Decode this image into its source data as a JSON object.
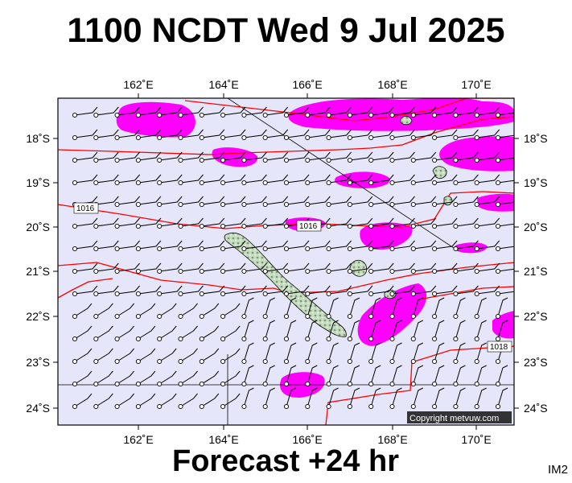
{
  "header": {
    "title": "1100 NCDT Wed 9 Jul 2025"
  },
  "footer": {
    "forecast": "Forecast +24 hr",
    "tag": "IM2"
  },
  "map": {
    "lon_ticks": [
      "162˚E",
      "164˚E",
      "166˚E",
      "168˚E",
      "170˚E"
    ],
    "lat_ticks": [
      "18˚S",
      "19˚S",
      "20˚S",
      "21˚S",
      "22˚S",
      "23˚S",
      "24˚S"
    ],
    "isobar_labels": [
      "1016",
      "1016",
      "1018"
    ],
    "copyright": "Copyright metvuw.com",
    "colors": {
      "background": "#e6e6fa",
      "rain_shading": "#ff00ff",
      "isobar": "#ff0000",
      "land": "#b8d0b0"
    }
  }
}
